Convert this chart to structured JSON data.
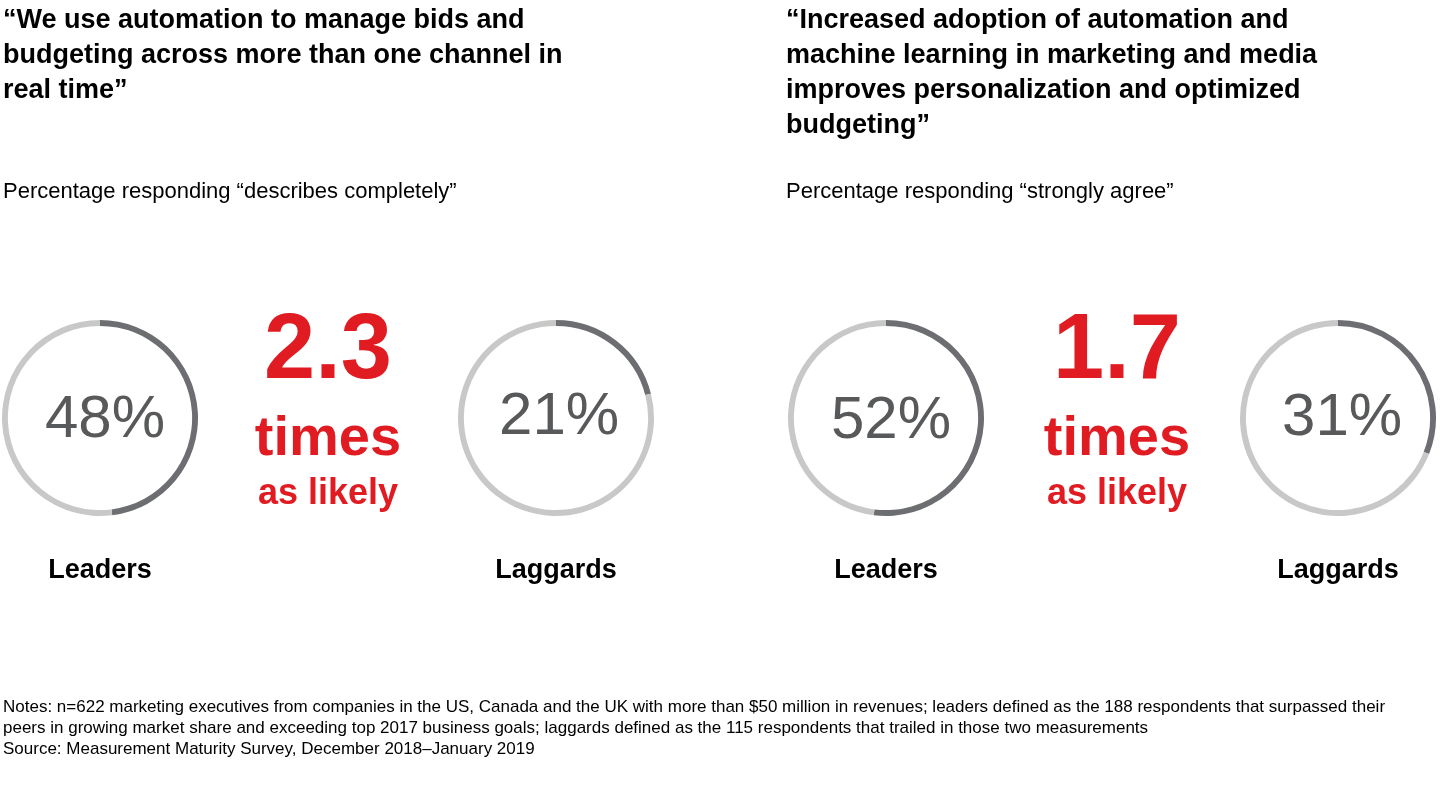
{
  "chart_data": [
    {
      "type": "other",
      "title": "“We use automation to manage bids and budgeting across more than one channel in real time”",
      "subtitle": "Percentage responding “describes completely”",
      "annotations": [
        "2.3",
        "times",
        "as likely"
      ]
    },
    {
      "type": "donut",
      "xlabel": "Leaders",
      "categories": [
        null,
        null
      ],
      "values": [
        48,
        52
      ],
      "colors": [
        "#6d6e71",
        "#c8c8c8"
      ],
      "value_labels": [
        "48%",
        null
      ]
    },
    {
      "type": "donut",
      "xlabel": "Laggards",
      "categories": [
        null,
        null
      ],
      "values": [
        21,
        79
      ],
      "colors": [
        "#6d6e71",
        "#c8c8c8"
      ],
      "value_labels": [
        "21%",
        null
      ]
    },
    {
      "type": "other",
      "title": "“Increased adoption of automation and machine learning in marketing and media improves personalization and optimized budgeting”",
      "subtitle": "Percentage responding “strongly agree”",
      "annotations": [
        "1.7",
        "times",
        "as likely"
      ]
    },
    {
      "type": "donut",
      "xlabel": "Leaders",
      "categories": [
        null,
        null
      ],
      "values": [
        52,
        48
      ],
      "colors": [
        "#6d6e71",
        "#c8c8c8"
      ],
      "value_labels": [
        "52%",
        null
      ]
    },
    {
      "type": "donut",
      "xlabel": "Laggards",
      "categories": [
        null,
        null
      ],
      "values": [
        31,
        69
      ],
      "colors": [
        "#6d6e71",
        "#c8c8c8"
      ],
      "value_labels": [
        "31%",
        null
      ]
    },
    {
      "type": "other",
      "annotations": [
        "Notes: n=622 marketing executives from companies in the US, Canada and the UK with more than $50 million in revenues; leaders defined as the 188 respondents that surpassed their peers in growing market share and exceeding top 2017 business goals; laggards defined as the 115 respondents that trailed in those two measurements",
        "Source: Measurement Maturity Survey, December 2018–January 2019"
      ]
    }
  ]
}
